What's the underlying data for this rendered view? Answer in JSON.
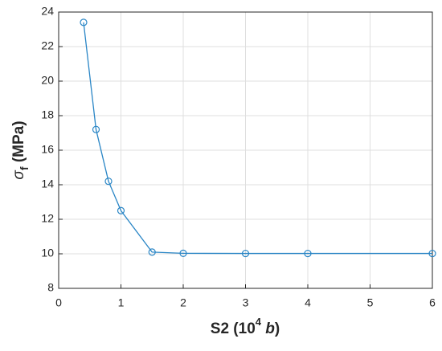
{
  "chart_data": {
    "type": "line",
    "xlabel": [
      "S2 (10",
      "4",
      " b",
      ")"
    ],
    "ylabel": [
      "σ",
      "f",
      " (MPa)"
    ],
    "x": [
      0.4,
      0.6,
      0.8,
      1.0,
      1.5,
      2,
      3,
      4,
      6
    ],
    "series": [
      {
        "color": "#2a86c6",
        "values": [
          23.4,
          17.2,
          14.2,
          12.5,
          10.1,
          10.03,
          10.02,
          10.02,
          10.02
        ]
      }
    ],
    "xlim": [
      0,
      6
    ],
    "xticks": [
      0,
      1,
      2,
      3,
      4,
      5,
      6
    ],
    "ylim": [
      8,
      24
    ],
    "yticks": [
      8,
      10,
      12,
      14,
      16,
      18,
      20,
      22,
      24
    ],
    "grid": true,
    "marker": "circle"
  }
}
